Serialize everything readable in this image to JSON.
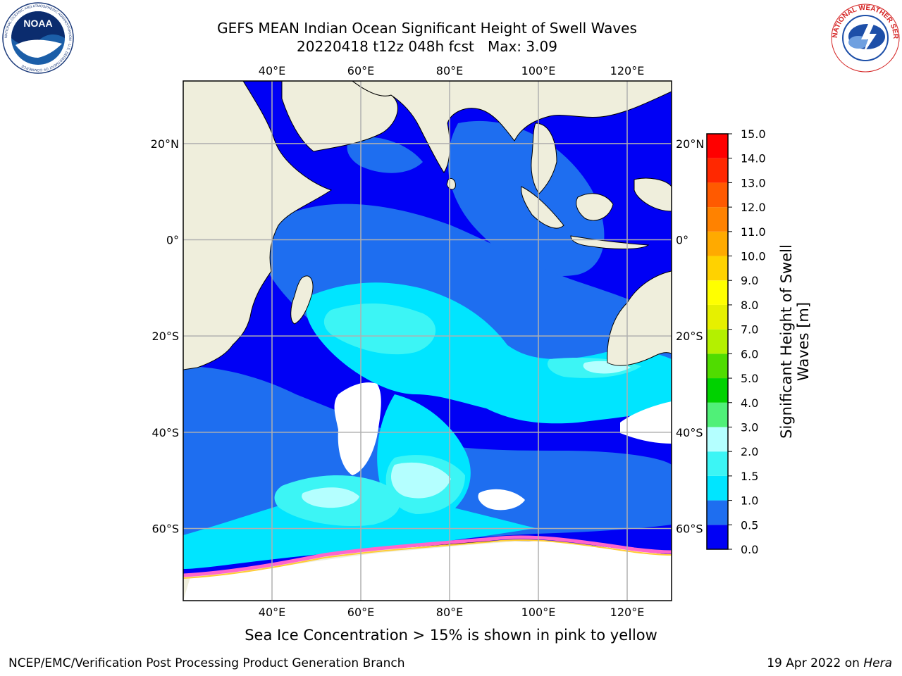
{
  "title": {
    "line1": "GEFS MEAN Indian Ocean Significant Height of Swell Waves",
    "line2_date": "20220418",
    "line2_cycle": "t12z",
    "line2_lead": "048h fcst",
    "line2_max": "Max: 3.09"
  },
  "axes": {
    "lon_ticks": [
      "40°E",
      "60°E",
      "80°E",
      "100°E",
      "120°E"
    ],
    "lon_values": [
      40,
      60,
      80,
      100,
      120
    ],
    "lat_ticks": [
      "20°N",
      "0°",
      "20°S",
      "40°S",
      "60°S"
    ],
    "lat_values": [
      20,
      0,
      -20,
      -40,
      -60
    ],
    "lon_range": [
      20,
      130
    ],
    "lat_range": [
      -75,
      33
    ],
    "grid": true
  },
  "colorbar": {
    "label_line1": "Significant Height of Swell",
    "label_line2": "Waves [m]",
    "ticks": [
      "0.0",
      "0.5",
      "1.0",
      "1.5",
      "2.0",
      "3.0",
      "4.0",
      "5.0",
      "6.0",
      "7.0",
      "8.0",
      "9.0",
      "10.0",
      "11.0",
      "12.0",
      "13.0",
      "14.0",
      "15.0"
    ],
    "colors": [
      "#0000f5",
      "#1e6ef0",
      "#00e5ff",
      "#3cf5f5",
      "#b4ffff",
      "#50f078",
      "#00d200",
      "#50dc00",
      "#b4f000",
      "#e6f000",
      "#ffff00",
      "#ffd200",
      "#ffaa00",
      "#ff8200",
      "#ff5a00",
      "#ff2800",
      "#ff0000"
    ]
  },
  "caption": "Sea Ice Concentration > 15% is shown in pink to yellow",
  "footer_left": "NCEP/EMC/Verification Post Processing Product Generation Branch",
  "footer_right_date": "19 Apr 2022 on",
  "footer_right_machine": "Hera",
  "logos": {
    "noaa": "NOAA",
    "noaa_ring": "NATIONAL OCEANIC AND ATMOSPHERIC ADMINISTRATION · U.S. DEPARTMENT OF COMMERCE",
    "nws_ring": "NATIONAL WEATHER SERVICE"
  },
  "colors": {
    "land": "#efeedc",
    "ocean_low": "#0000f5",
    "ocean_mid": "#1e6ef0",
    "ocean_high": "#00e5ff",
    "ice": "#ff66cc"
  }
}
